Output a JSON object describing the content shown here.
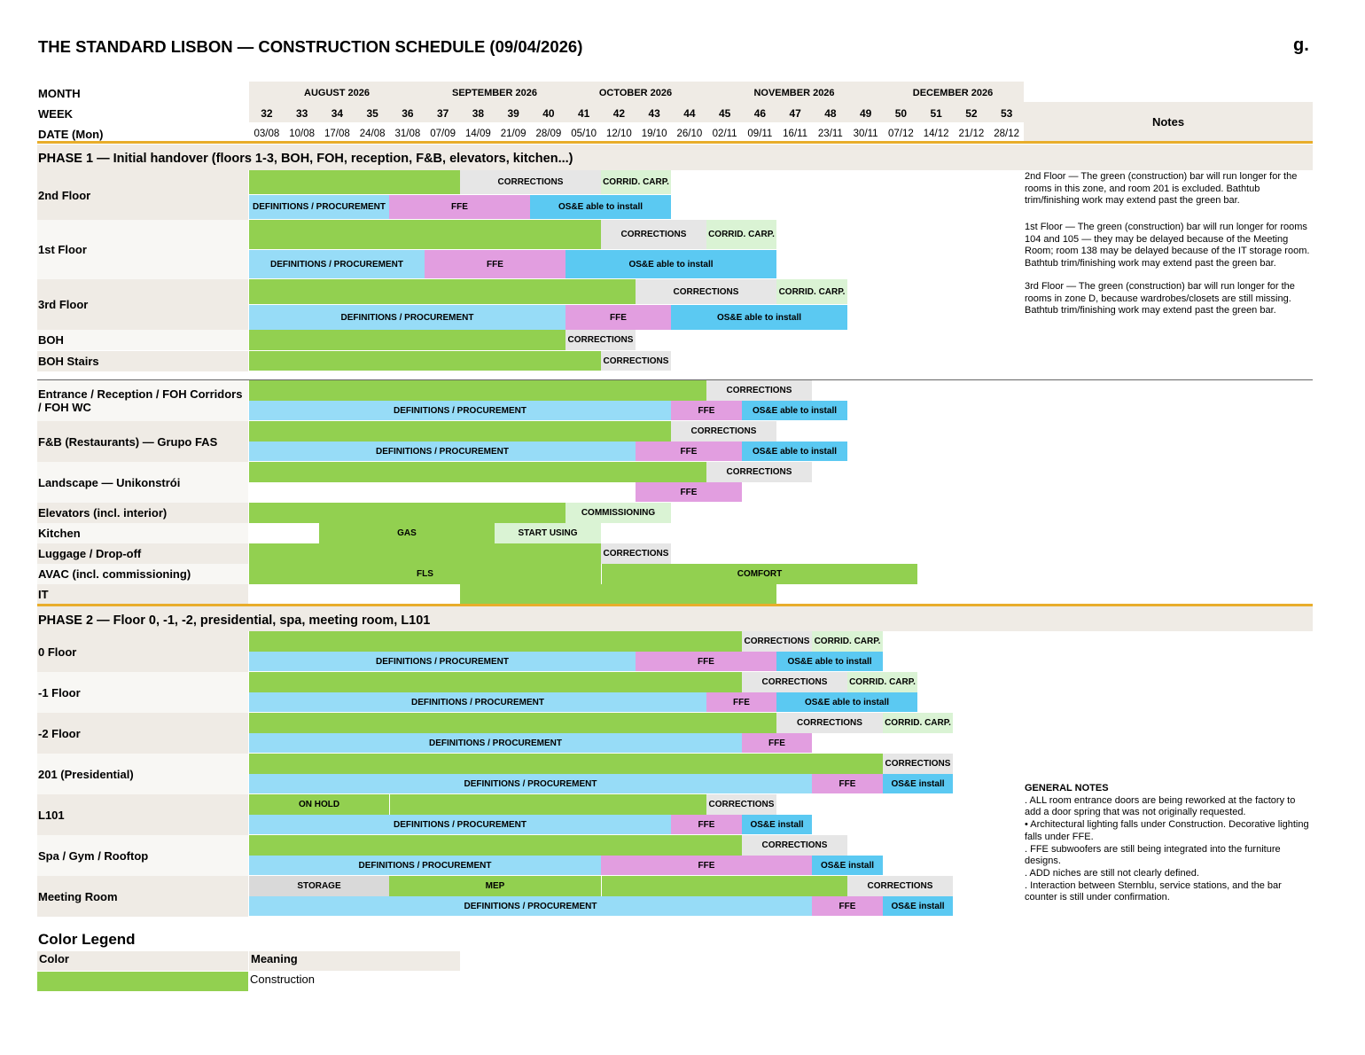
{
  "title": "THE STANDARD LISBON — CONSTRUCTION SCHEDULE (09/04/2026)",
  "logo": "g.",
  "header": {
    "month_label": "MONTH",
    "week_label": "WEEK",
    "date_label": "DATE (Mon)",
    "notes_label": "Notes",
    "months": [
      "AUGUST 2026",
      "SEPTEMBER 2026",
      "OCTOBER 2026",
      "NOVEMBER 2026",
      "DECEMBER 2026"
    ],
    "weeks": [
      "32",
      "33",
      "34",
      "35",
      "36",
      "37",
      "38",
      "39",
      "40",
      "41",
      "42",
      "43",
      "44",
      "45",
      "46",
      "47",
      "48",
      "49",
      "50",
      "51",
      "52",
      "53"
    ],
    "dates": [
      "03/08",
      "10/08",
      "17/08",
      "24/08",
      "31/08",
      "07/09",
      "14/09",
      "21/09",
      "28/09",
      "05/10",
      "12/10",
      "19/10",
      "26/10",
      "02/11",
      "09/11",
      "16/11",
      "23/11",
      "30/11",
      "07/12",
      "14/12",
      "21/12",
      "28/12"
    ]
  },
  "phase1": {
    "title": "PHASE 1 — Initial handover (floors 1-3, BOH, FOH, reception, F&B, elevators, kitchen...)",
    "rows": [
      "2nd Floor",
      "1st Floor",
      "3rd Floor",
      "BOH",
      "BOH Stairs",
      "Entrance / Reception / FOH Corridors / FOH WC",
      "F&B (Restaurants) — Grupo FAS",
      "Landscape — Unikonstrói",
      "Elevators (incl. interior)",
      "Kitchen",
      "Luggage / Drop-off",
      "AVAC (incl. commissioning)",
      "IT"
    ]
  },
  "phase2": {
    "title": "PHASE 2 — Floor 0, -1, -2, presidential, spa, meeting room, L101",
    "rows": [
      "0 Floor",
      "-1 Floor",
      "-2 Floor",
      "201 (Presidential)",
      "L101",
      "Spa / Gym / Rooftop",
      "Meeting Room"
    ]
  },
  "bar_labels": {
    "corrections": "CORRECTIONS",
    "corrid_carp": "CORRID. CARP.",
    "definitions": "DEFINITIONS / PROCUREMENT",
    "ffe": "FFE",
    "ose": "OS&E able to install",
    "ose_short": "OS&E install",
    "commissioning": "COMMISSIONING",
    "gas": "GAS",
    "start_using": "START USING",
    "fls": "FLS",
    "comfort": "COMFORT",
    "on_hold": "ON HOLD",
    "storage": "STORAGE",
    "mep": "MEP"
  },
  "notes": {
    "n2": "2nd Floor —  The green (construction) bar will run longer for the rooms in this zone, and room 201 is excluded. Bathtub trim/finishing work may extend past the green bar.",
    "n1": "1st Floor —  The green (construction) bar will run longer for rooms 104 and 105 — they may be delayed because of the Meeting Room; room 138 may be delayed because of the IT storage room. Bathtub trim/finishing work may extend past the green bar.",
    "n3": "3rd Floor —  The green (construction) bar will run longer for the rooms in zone D, because wardrobes/closets are still missing. Bathtub trim/finishing work may extend past the green bar."
  },
  "general_notes": {
    "title": "GENERAL NOTES",
    "items": [
      ". ALL room entrance doors are being reworked at the factory to add a door spring that was not originally requested.",
      "•  Architectural lighting falls under Construction. Decorative lighting falls under FFE.",
      ". FFE subwoofers are still being integrated into the furniture designs.",
      ". ADD niches are still not clearly defined.",
      ". Interaction between Sternblu, service stations, and the bar counter is still under confirmation."
    ]
  },
  "legend": {
    "title": "Color Legend",
    "col_color": "Color",
    "col_meaning": "Meaning",
    "rows": [
      {
        "color": "#92d050",
        "meaning": "Construction"
      }
    ]
  },
  "colors": {
    "construction": "#92d050",
    "procurement": "#97dcf7",
    "ffe": "#e29ee0",
    "ose": "#5bc9f2",
    "corrections": "#e6e6e6",
    "corrid_carp": "#daf3d4",
    "phase_line": "#e8ad2b"
  }
}
